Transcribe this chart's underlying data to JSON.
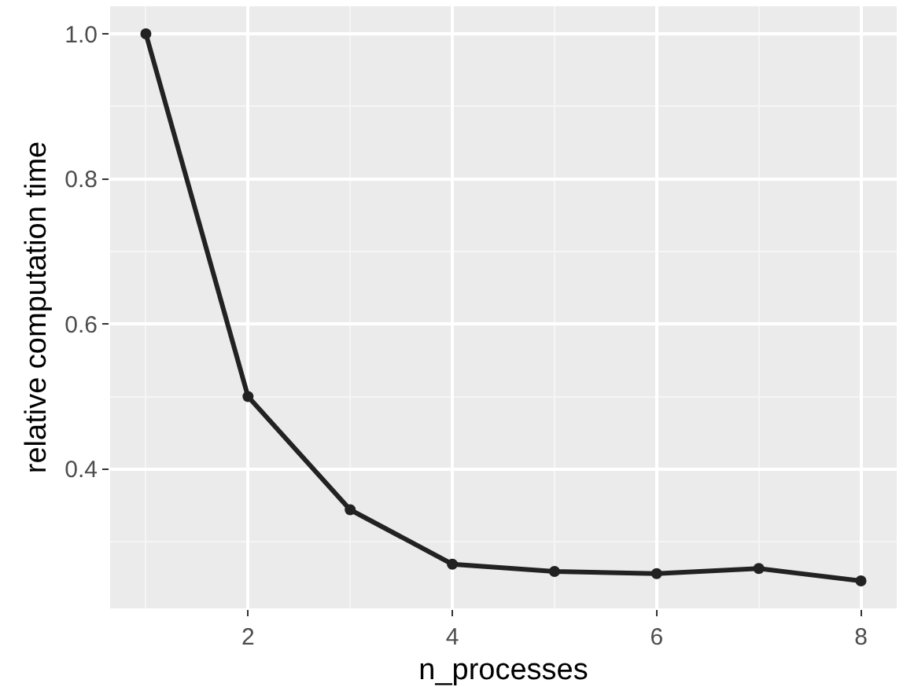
{
  "chart_data": {
    "type": "line",
    "xlabel": "n_processes",
    "ylabel": "relative computation time",
    "x": [
      1,
      2,
      3,
      4,
      5,
      6,
      7,
      8
    ],
    "series": [
      {
        "color": "#222222",
        "values": [
          1.0,
          0.5,
          0.344,
          0.269,
          0.259,
          0.256,
          0.263,
          0.246
        ]
      }
    ],
    "xlim": [
      0.65,
      8.35
    ],
    "xticks": [
      2,
      4,
      6,
      8
    ],
    "ylim": [
      0.208,
      1.038
    ],
    "yticks": [
      {
        "value": 0.4,
        "label": "0.4"
      },
      {
        "value": 0.6,
        "label": "0.6"
      },
      {
        "value": 0.8,
        "label": "0.8"
      },
      {
        "value": 1.0,
        "label": "1.0"
      }
    ],
    "grid": true,
    "marker": "circle",
    "line_style": "solid",
    "legend": false
  }
}
